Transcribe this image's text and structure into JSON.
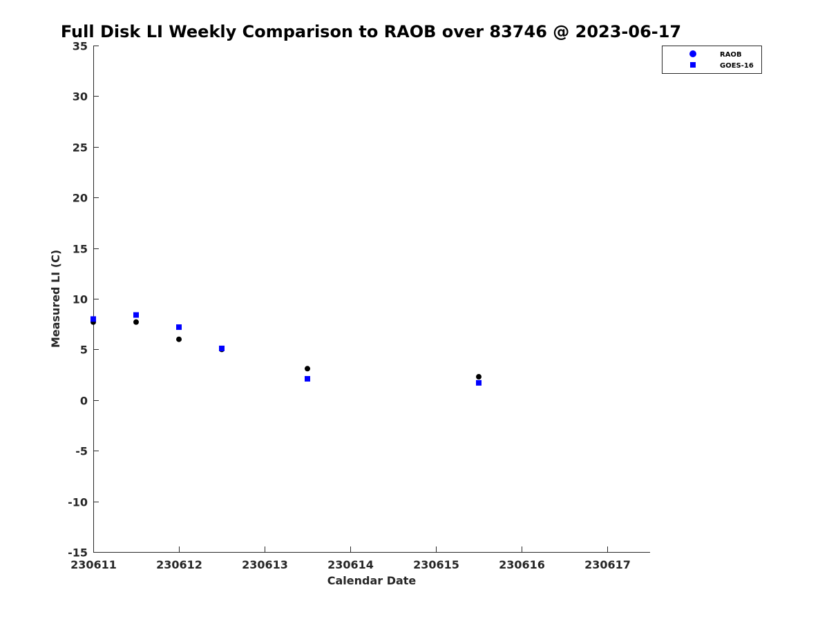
{
  "chart_data": {
    "type": "scatter",
    "title": "Full Disk LI Weekly Comparison to RAOB over 83746 @ 2023-06-17",
    "xlabel": "Calendar Date",
    "ylabel": "Measured LI (C)",
    "xlim": [
      230611,
      230617.5
    ],
    "ylim": [
      -15,
      35
    ],
    "xticks": [
      230611,
      230612,
      230613,
      230614,
      230615,
      230616,
      230617
    ],
    "xtick_labels": [
      "230611",
      "230612",
      "230613",
      "230614",
      "230615",
      "230616",
      "230617"
    ],
    "yticks": [
      35,
      30,
      25,
      20,
      15,
      10,
      5,
      0,
      -5,
      -10,
      -15
    ],
    "ytick_labels": [
      "35",
      "30",
      "25",
      "20",
      "15",
      "10",
      "5",
      "0",
      "-5",
      "-10",
      "-15"
    ],
    "grid": false,
    "legend_position": "top-right",
    "series": [
      {
        "name": "RAOB",
        "marker": "circle",
        "color": "#000000",
        "legend_color": "#0000ff",
        "x": [
          230611.0,
          230611.5,
          230612.0,
          230612.5,
          230613.5,
          230615.5
        ],
        "y": [
          7.7,
          7.7,
          6.0,
          5.0,
          3.1,
          2.3
        ]
      },
      {
        "name": "GOES-16",
        "marker": "square",
        "color": "#0000ff",
        "legend_color": "#0000ff",
        "x": [
          230611.0,
          230611.5,
          230612.0,
          230612.5,
          230613.5,
          230615.5
        ],
        "y": [
          8.0,
          8.4,
          7.2,
          5.1,
          2.1,
          1.7
        ]
      }
    ]
  }
}
